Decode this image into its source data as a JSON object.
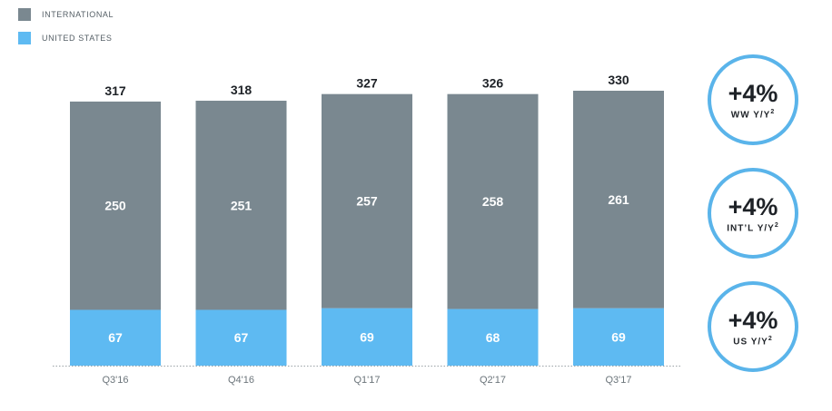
{
  "legend": {
    "international": "INTERNATIONAL",
    "united_states": "UNITED STATES"
  },
  "colors": {
    "international": "#7a8890",
    "united_states": "#5ebaf2",
    "badge_ring": "#5ab4ea"
  },
  "badges": [
    {
      "value": "+4%",
      "label": "WW Y/Y",
      "sup": "2"
    },
    {
      "value": "+4%",
      "label": "INT’L Y/Y",
      "sup": "2"
    },
    {
      "value": "+4%",
      "label": "US Y/Y",
      "sup": "2"
    }
  ],
  "chart_data": {
    "type": "bar",
    "stacked": true,
    "categories": [
      "Q3'16",
      "Q4'16",
      "Q1'17",
      "Q2'17",
      "Q3'17"
    ],
    "series": [
      {
        "name": "UNITED STATES",
        "values": [
          67,
          67,
          69,
          68,
          69
        ]
      },
      {
        "name": "INTERNATIONAL",
        "values": [
          250,
          251,
          257,
          258,
          261
        ]
      }
    ],
    "totals": [
      317,
      318,
      327,
      326,
      330
    ],
    "ylim": [
      0,
      330
    ],
    "grid": false,
    "legend_position": "top-left"
  }
}
